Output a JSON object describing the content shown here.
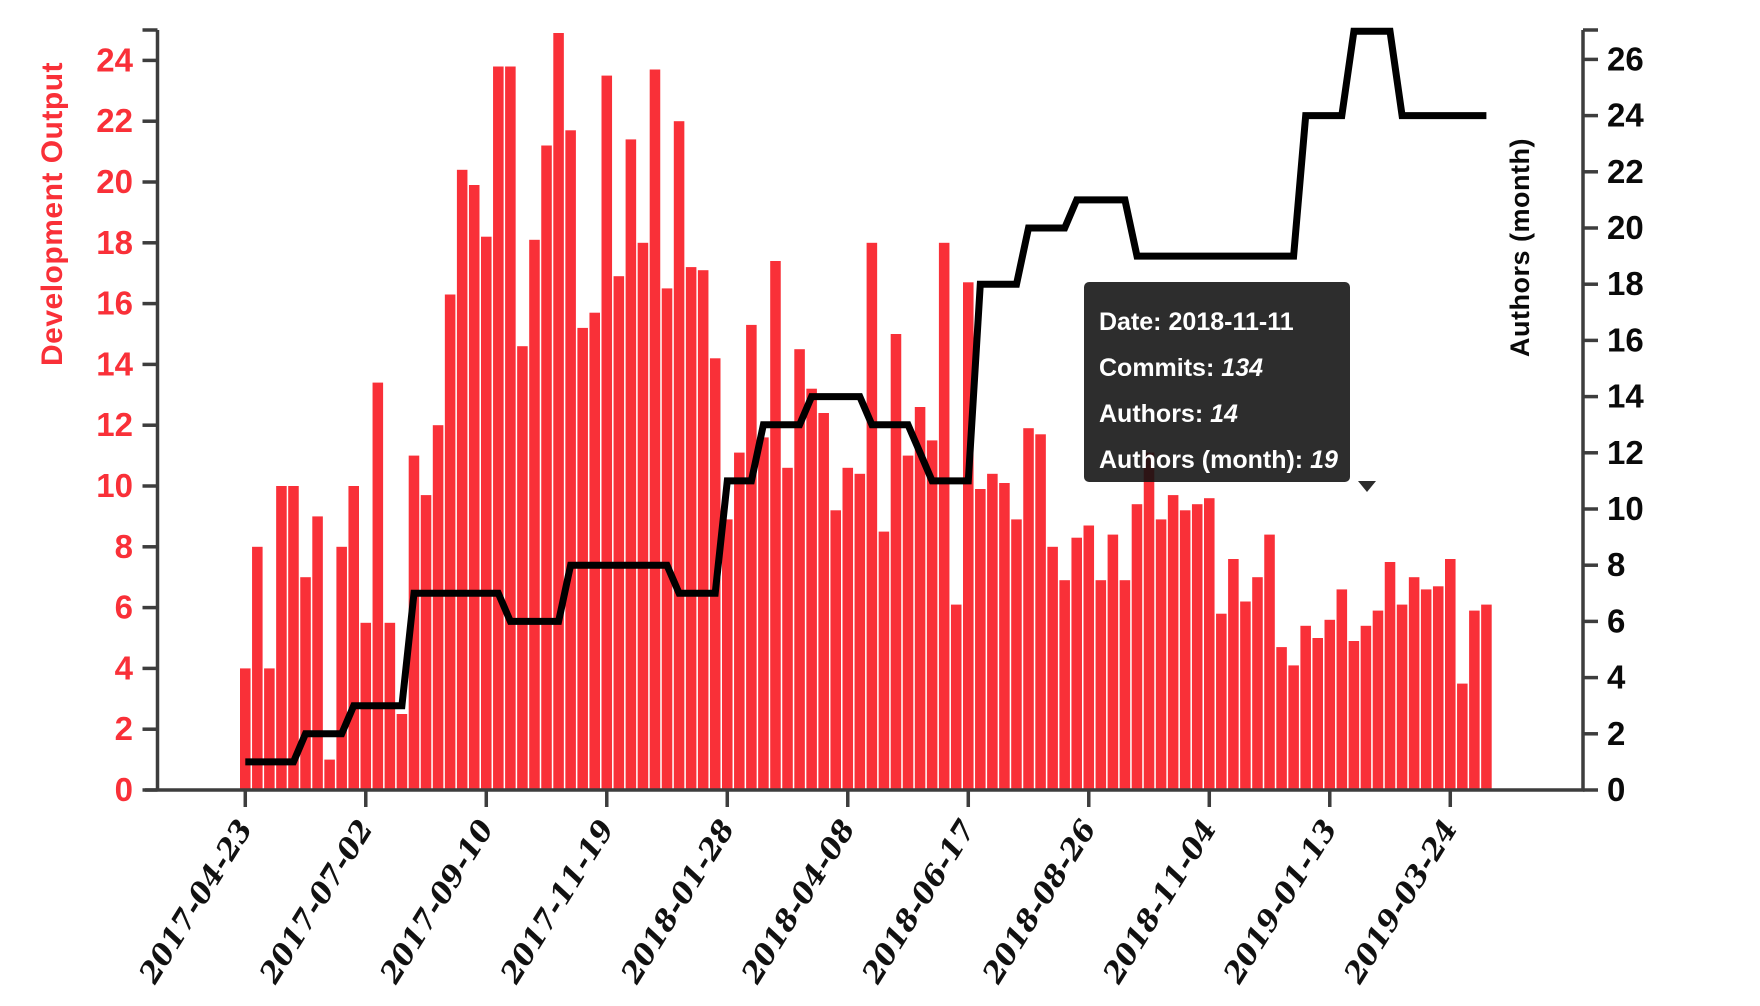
{
  "chart": {
    "left_axis": {
      "title": "Development Output",
      "color": "#f93038",
      "tick_labels": [
        "0",
        "2",
        "4",
        "6",
        "8",
        "10",
        "12",
        "14",
        "16",
        "18",
        "20",
        "22",
        "24"
      ]
    },
    "right_axis": {
      "title": "Authors (month)",
      "color": "#0a0a0a",
      "tick_labels": [
        "0",
        "2",
        "4",
        "6",
        "8",
        "10",
        "12",
        "14",
        "16",
        "18",
        "20",
        "22",
        "24",
        "26"
      ]
    },
    "x_axis": {
      "tick_labels": [
        "2017-04-23",
        "2017-07-02",
        "2017-09-10",
        "2017-11-19",
        "2018-01-28",
        "2018-04-08",
        "2018-06-17",
        "2018-08-26",
        "2018-11-04",
        "2019-01-13",
        "2019-03-24"
      ]
    },
    "tooltip": {
      "date_label": "Date:",
      "date_value": "2018-11-11",
      "commits_label": "Commits:",
      "commits_value": "134",
      "authors_label": "Authors:",
      "authors_value": "14",
      "authors_month_label": "Authors (month):",
      "authors_month_value": "19"
    }
  },
  "chart_data": {
    "type": "bar",
    "title": "",
    "xlabel": "",
    "ylabel_left": "Development Output",
    "ylabel_right": "Authors (month)",
    "start_date": "2017-04-23",
    "interval_days": 7,
    "ylim_left": [
      0,
      25
    ],
    "ylim_right": [
      0,
      27
    ],
    "grid": false,
    "legend": "none",
    "series": [
      {
        "name": "Development Output",
        "type": "bar",
        "color": "#f93038",
        "values": [
          4.0,
          8.0,
          4.0,
          10.0,
          10.0,
          7.0,
          9.0,
          1.0,
          8.0,
          10.0,
          5.5,
          13.4,
          5.5,
          2.5,
          11.0,
          9.7,
          12.0,
          16.3,
          20.4,
          19.9,
          18.2,
          23.8,
          23.8,
          14.6,
          18.1,
          21.2,
          24.9,
          21.7,
          15.2,
          15.7,
          23.5,
          16.9,
          21.4,
          18.0,
          23.7,
          16.5,
          22.0,
          17.2,
          17.1,
          14.2,
          8.9,
          11.1,
          15.3,
          11.6,
          17.4,
          10.6,
          14.5,
          13.2,
          12.4,
          9.2,
          10.6,
          10.4,
          18.0,
          8.5,
          15.0,
          11.0,
          12.6,
          11.5,
          18.0,
          6.1,
          16.7,
          9.9,
          10.4,
          10.1,
          8.9,
          11.9,
          11.7,
          8.0,
          6.9,
          8.3,
          8.7,
          6.9,
          8.4,
          6.9,
          9.4,
          11.1,
          8.9,
          9.7,
          9.2,
          9.4,
          9.6,
          5.8,
          7.6,
          6.2,
          7.0,
          8.4,
          4.7,
          4.1,
          5.4,
          5.0,
          5.6,
          6.6,
          4.9,
          5.4,
          5.9,
          7.5,
          6.1,
          7.0,
          6.6,
          6.7,
          7.6,
          3.5,
          5.9,
          6.1
        ]
      },
      {
        "name": "Authors (month)",
        "type": "line",
        "color": "#000000",
        "values": [
          1,
          1,
          1,
          1,
          1,
          2,
          2,
          2,
          2,
          3,
          3,
          3,
          3,
          3,
          7,
          7,
          7,
          7,
          7,
          7,
          7,
          7,
          6,
          6,
          6,
          6,
          6,
          8,
          8,
          8,
          8,
          8,
          8,
          8,
          8,
          8,
          7,
          7,
          7,
          7,
          11,
          11,
          11,
          13,
          13,
          13,
          13,
          14,
          14,
          14,
          14,
          14,
          13,
          13,
          13,
          13,
          12,
          11,
          11,
          11,
          11,
          18,
          18,
          18,
          18,
          20,
          20,
          20,
          20,
          21,
          21,
          21,
          21,
          21,
          19,
          19,
          19,
          19,
          19,
          19,
          19,
          19,
          19,
          19,
          19,
          19,
          19,
          19,
          24,
          24,
          24,
          24,
          27,
          27,
          27,
          27,
          24,
          24,
          24,
          24,
          24,
          24,
          24,
          24
        ]
      }
    ]
  }
}
